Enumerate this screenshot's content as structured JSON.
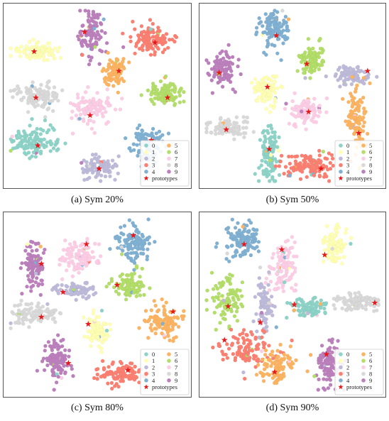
{
  "legend": {
    "items": [
      "0",
      "1",
      "2",
      "3",
      "4",
      "5",
      "6",
      "7",
      "8",
      "9"
    ],
    "prototypes_label": "prototypes"
  },
  "colors": {
    "0": "#8dd3c7",
    "1": "#ffffb3",
    "2": "#bebada",
    "3": "#fb8072",
    "4": "#80b1d3",
    "5": "#fdb462",
    "6": "#b3de69",
    "7": "#fccde5",
    "8": "#d9d9d9",
    "9": "#bc80bd",
    "prototype": "#e41a1c",
    "frame": "#555555"
  },
  "chart_data": [
    {
      "type": "scatter",
      "caption": "(a) Sym 20%",
      "xlim": [
        0,
        100
      ],
      "ylim": [
        0,
        100
      ],
      "clusters": [
        {
          "class": "9",
          "cx": 46,
          "cy": 85,
          "sx": 4,
          "sy": 7,
          "n": 110
        },
        {
          "class": "1",
          "cx": 18,
          "cy": 75,
          "sx": 7,
          "sy": 2.5,
          "n": 100
        },
        {
          "class": "3",
          "cx": 80,
          "cy": 82,
          "sx": 6,
          "sy": 4,
          "n": 110
        },
        {
          "class": "5",
          "cx": 60,
          "cy": 63,
          "sx": 4,
          "sy": 5,
          "n": 90
        },
        {
          "class": "8",
          "cx": 17,
          "cy": 50,
          "sx": 7,
          "sy": 4,
          "n": 110
        },
        {
          "class": "6",
          "cx": 88,
          "cy": 51,
          "sx": 6,
          "sy": 3.5,
          "n": 100
        },
        {
          "class": "7",
          "cx": 47,
          "cy": 43,
          "sx": 6,
          "sy": 5,
          "n": 110
        },
        {
          "class": "0",
          "cx": 17,
          "cy": 24,
          "sx": 8,
          "sy": 4,
          "n": 120
        },
        {
          "class": "4",
          "cx": 78,
          "cy": 22,
          "sx": 5,
          "sy": 6,
          "n": 100
        },
        {
          "class": "2",
          "cx": 50,
          "cy": 10,
          "sx": 6,
          "sy": 4,
          "n": 90
        }
      ],
      "prototypes": [
        {
          "class": "9",
          "x": 43,
          "y": 86
        },
        {
          "class": "1",
          "x": 15,
          "y": 75
        },
        {
          "class": "3",
          "x": 82,
          "y": 80
        },
        {
          "class": "5",
          "x": 62,
          "y": 64
        },
        {
          "class": "8",
          "x": 16,
          "y": 49
        },
        {
          "class": "6",
          "x": 89,
          "y": 49
        },
        {
          "class": "7",
          "x": 46,
          "y": 39
        },
        {
          "class": "0",
          "x": 17,
          "y": 22
        },
        {
          "class": "4",
          "x": 80,
          "y": 25
        },
        {
          "class": "2",
          "x": 51,
          "y": 9
        }
      ]
    },
    {
      "type": "scatter",
      "caption": "(b) Sym 50%",
      "xlim": [
        0,
        100
      ],
      "ylim": [
        0,
        100
      ],
      "clusters": [
        {
          "class": "4",
          "cx": 40,
          "cy": 88,
          "sx": 5,
          "sy": 6,
          "n": 110
        },
        {
          "class": "6",
          "cx": 61,
          "cy": 70,
          "sx": 4,
          "sy": 5,
          "n": 100
        },
        {
          "class": "9",
          "cx": 11,
          "cy": 65,
          "sx": 4,
          "sy": 6,
          "n": 110
        },
        {
          "class": "2",
          "cx": 83,
          "cy": 61,
          "sx": 5,
          "sy": 3,
          "n": 80
        },
        {
          "class": "1",
          "cx": 35,
          "cy": 54,
          "sx": 4,
          "sy": 5,
          "n": 90
        },
        {
          "class": "7",
          "cx": 57,
          "cy": 41,
          "sx": 5,
          "sy": 4,
          "n": 100
        },
        {
          "class": "5",
          "cx": 86,
          "cy": 37,
          "sx": 3,
          "sy": 9,
          "n": 110
        },
        {
          "class": "8",
          "cx": 13,
          "cy": 32,
          "sx": 7,
          "sy": 3,
          "n": 100
        },
        {
          "class": "0",
          "cx": 37,
          "cy": 18,
          "sx": 3,
          "sy": 9,
          "n": 110
        },
        {
          "class": "3",
          "cx": 60,
          "cy": 11,
          "sx": 8,
          "sy": 4,
          "n": 120
        }
      ],
      "prototypes": [
        {
          "class": "4",
          "x": 41,
          "y": 84
        },
        {
          "class": "6",
          "x": 58,
          "y": 68
        },
        {
          "class": "9",
          "x": 9,
          "y": 63
        },
        {
          "class": "2",
          "x": 92,
          "y": 64
        },
        {
          "class": "1",
          "x": 36,
          "y": 55
        },
        {
          "class": "7",
          "x": 59,
          "y": 41
        },
        {
          "class": "5",
          "x": 87,
          "y": 29
        },
        {
          "class": "8",
          "x": 13,
          "y": 31
        },
        {
          "class": "0",
          "x": 37,
          "y": 20
        },
        {
          "class": "3",
          "x": 66,
          "y": 9
        }
      ]
    },
    {
      "type": "scatter",
      "caption": "(c) Sym 80%",
      "xlim": [
        0,
        100
      ],
      "ylim": [
        0,
        100
      ],
      "clusters": [
        {
          "class": "4",
          "cx": 70,
          "cy": 85,
          "sx": 5,
          "sy": 6,
          "n": 120
        },
        {
          "class": "9",
          "cx": 15,
          "cy": 72,
          "sx": 3,
          "sy": 7,
          "n": 100
        },
        {
          "class": "7",
          "cx": 41,
          "cy": 77,
          "sx": 6,
          "sy": 5,
          "n": 110
        },
        {
          "class": "6",
          "cx": 68,
          "cy": 60,
          "sx": 5,
          "sy": 4,
          "n": 100
        },
        {
          "class": "2",
          "cx": 38,
          "cy": 58,
          "sx": 6,
          "sy": 2.5,
          "n": 80
        },
        {
          "class": "8",
          "cx": 14,
          "cy": 45,
          "sx": 7,
          "sy": 3.5,
          "n": 100
        },
        {
          "class": "1",
          "cx": 50,
          "cy": 36,
          "sx": 4,
          "sy": 5,
          "n": 90
        },
        {
          "class": "5",
          "cx": 87,
          "cy": 40,
          "sx": 6,
          "sy": 5,
          "n": 110
        },
        {
          "class": "9",
          "cx": 28,
          "cy": 18,
          "sx": 4,
          "sy": 6,
          "n": 110
        },
        {
          "class": "3",
          "cx": 63,
          "cy": 11,
          "sx": 7,
          "sy": 3.5,
          "n": 110
        }
      ],
      "prototypes": [
        {
          "class": "4",
          "x": 70,
          "y": 89
        },
        {
          "class": "9",
          "x": 19,
          "y": 73
        },
        {
          "class": "7",
          "x": 44,
          "y": 84
        },
        {
          "class": "6",
          "x": 61,
          "y": 61
        },
        {
          "class": "2",
          "x": 31,
          "y": 57
        },
        {
          "class": "8",
          "x": 19,
          "y": 43
        },
        {
          "class": "1",
          "x": 45,
          "y": 39
        },
        {
          "class": "5",
          "x": 92,
          "y": 46
        },
        {
          "class": "9",
          "x": 34,
          "y": 17
        },
        {
          "class": "3",
          "x": 67,
          "y": 13
        }
      ]
    },
    {
      "type": "scatter",
      "caption": "(d) Sym 90%",
      "xlim": [
        0,
        100
      ],
      "ylim": [
        0,
        100
      ],
      "clusters": [
        {
          "class": "4",
          "cx": 22,
          "cy": 86,
          "sx": 6,
          "sy": 5,
          "n": 120
        },
        {
          "class": "1",
          "cx": 73,
          "cy": 82,
          "sx": 4,
          "sy": 6,
          "n": 90
        },
        {
          "class": "7",
          "cx": 45,
          "cy": 72,
          "sx": 4,
          "sy": 8,
          "n": 100
        },
        {
          "class": "6",
          "cx": 13,
          "cy": 53,
          "sx": 5,
          "sy": 7,
          "n": 100
        },
        {
          "class": "2",
          "cx": 34,
          "cy": 48,
          "sx": 2.5,
          "sy": 8,
          "n": 80
        },
        {
          "class": "0",
          "cx": 58,
          "cy": 48,
          "sx": 6,
          "sy": 3,
          "n": 100
        },
        {
          "class": "8",
          "cx": 87,
          "cy": 51,
          "sx": 7,
          "sy": 3,
          "n": 100
        },
        {
          "class": "3",
          "cx": 25,
          "cy": 25,
          "sx": 8,
          "sy": 5,
          "n": 110
        },
        {
          "class": "5",
          "cx": 42,
          "cy": 15,
          "sx": 6,
          "sy": 5,
          "n": 100
        },
        {
          "class": "9",
          "cx": 70,
          "cy": 17,
          "sx": 4,
          "sy": 8,
          "n": 100
        }
      ],
      "prototypes": [
        {
          "class": "4",
          "x": 23,
          "y": 84
        },
        {
          "class": "1",
          "x": 68,
          "y": 78
        },
        {
          "class": "7",
          "x": 44,
          "y": 81
        },
        {
          "class": "6",
          "x": 14,
          "y": 49
        },
        {
          "class": "2",
          "x": 32,
          "y": 40
        },
        {
          "class": "0",
          "x": 51,
          "y": 50
        },
        {
          "class": "8",
          "x": 96,
          "y": 51
        },
        {
          "class": "3",
          "x": 12,
          "y": 30
        },
        {
          "class": "5",
          "x": 40,
          "y": 12
        },
        {
          "class": "9",
          "x": 69,
          "y": 22
        }
      ]
    }
  ]
}
